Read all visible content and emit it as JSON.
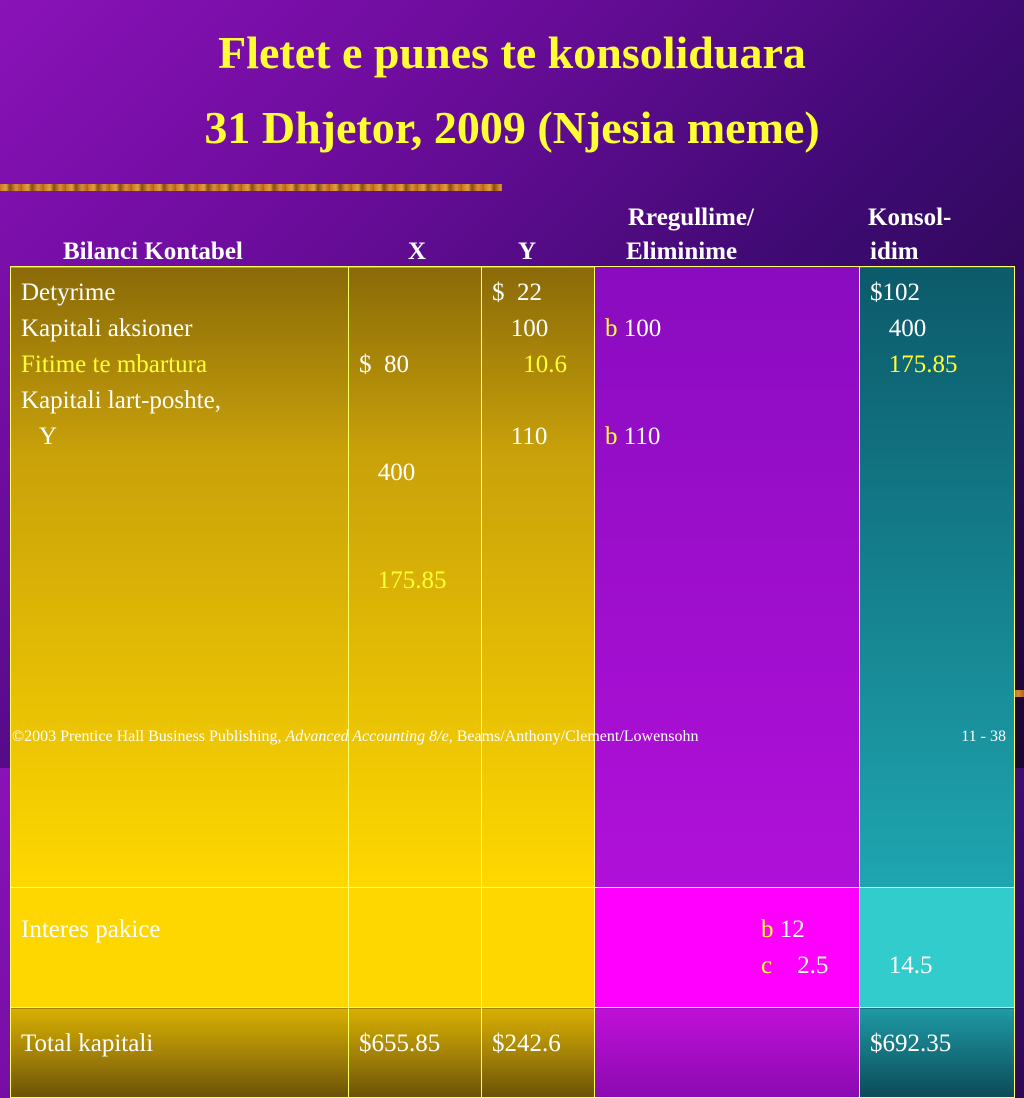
{
  "title": {
    "line1": "Fletet e punes te konsoliduara",
    "line2": "31 Dhjetor, 2009 (Njesia meme)"
  },
  "headers": {
    "bilanci": "Bilanci Kontabel",
    "x": "X",
    "y": "Y",
    "rregullime_line1": "Rregullime/",
    "rregullime_line2": "Eliminime",
    "konsol_line1": "Konsol-",
    "konsol_line2": "idim"
  },
  "rows": [
    {
      "labels": [
        "Detyrime",
        "Kapitali aksioner",
        "Fitime te mbartura",
        "Kapitali lart-poshte,",
        "   Y"
      ],
      "x": [
        "$  80",
        "   400",
        "   175.85",
        "",
        ""
      ],
      "y": [
        "$  22",
        "   100",
        "     10.6",
        "",
        "   110"
      ],
      "adj": [
        {
          "code": "",
          "val": ""
        },
        {
          "code": "b",
          "val": " 100"
        },
        {
          "code": "",
          "val": ""
        },
        {
          "code": "",
          "val": ""
        },
        {
          "code": "b",
          "val": " 110"
        }
      ],
      "kons": [
        "$102",
        "   400",
        "   175.85",
        "",
        ""
      ]
    },
    {
      "labels": [
        "Interes pakice",
        ""
      ],
      "adj": [
        {
          "code": "b",
          "val": " 12"
        },
        {
          "code": "c",
          "val": "    2.5"
        }
      ],
      "kons": [
        "",
        "   14.5"
      ]
    },
    {
      "labels": [
        "Total kapitali"
      ],
      "x": [
        "$655.85"
      ],
      "y": [
        "$242.6"
      ],
      "kons": [
        "$692.35"
      ]
    }
  ],
  "footer": {
    "copyright": "©2003 Prentice Hall Business Publishing, ",
    "book": "Advanced Accounting 8/e,",
    "authors": " Beams/Anthony/Clement/Lowensohn",
    "page": "11 - 38"
  }
}
